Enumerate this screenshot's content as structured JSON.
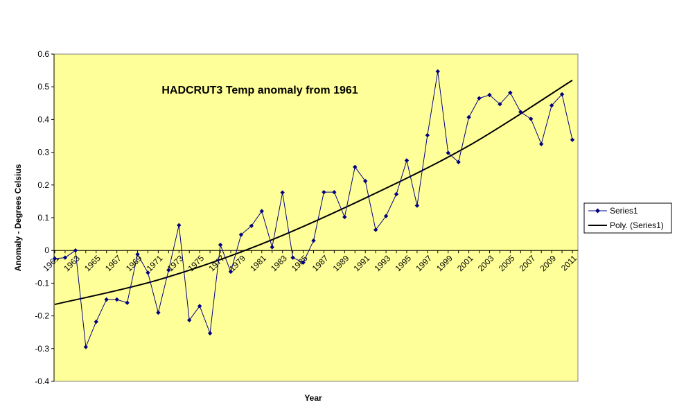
{
  "chart_data": {
    "type": "line",
    "title": "HADCRUT3 Temp anomaly from 1961",
    "xlabel": "Year",
    "ylabel": "Anomaly - Degrees Celsius",
    "ylim": [
      -0.4,
      0.6
    ],
    "ytick_step": 0.1,
    "xtick_labels": [
      "1961",
      "1963",
      "1965",
      "1967",
      "1969",
      "1971",
      "1973",
      "1975",
      "1977",
      "1979",
      "1981",
      "1983",
      "1985",
      "1987",
      "1989",
      "1991",
      "1993",
      "1995",
      "1997",
      "1999",
      "2001",
      "2003",
      "2005",
      "2007",
      "2009",
      "2011"
    ],
    "plot_background": "#ffff99",
    "grid": false,
    "legend_position": "right",
    "series": [
      {
        "name": "Series1",
        "color": "#000080",
        "marker": "diamond",
        "x": [
          1961,
          1962,
          1963,
          1964,
          1965,
          1966,
          1967,
          1968,
          1969,
          1970,
          1971,
          1972,
          1973,
          1974,
          1975,
          1976,
          1977,
          1978,
          1979,
          1980,
          1981,
          1982,
          1983,
          1984,
          1985,
          1986,
          1987,
          1988,
          1989,
          1990,
          1991,
          1992,
          1993,
          1994,
          1995,
          1996,
          1997,
          1998,
          1999,
          2000,
          2001,
          2002,
          2003,
          2004,
          2005,
          2006,
          2007,
          2008,
          2009,
          2010,
          2011
        ],
        "values": [
          -0.025,
          -0.022,
          0.0,
          -0.295,
          -0.218,
          -0.15,
          -0.15,
          -0.16,
          -0.012,
          -0.068,
          -0.19,
          -0.06,
          0.077,
          -0.213,
          -0.17,
          -0.253,
          0.017,
          -0.065,
          0.048,
          0.075,
          0.12,
          0.01,
          0.177,
          -0.022,
          -0.037,
          0.03,
          0.178,
          0.178,
          0.102,
          0.255,
          0.212,
          0.063,
          0.105,
          0.172,
          0.275,
          0.137,
          0.352,
          0.547,
          0.298,
          0.27,
          0.407,
          0.465,
          0.475,
          0.447,
          0.482,
          0.423,
          0.402,
          0.325,
          0.443,
          0.477,
          0.338
        ]
      },
      {
        "name": "Poly. (Series1)",
        "color": "#000000",
        "type": "trendline",
        "x": [
          1961,
          1971,
          1981,
          1991,
          2001,
          2011
        ],
        "values": [
          -0.165,
          -0.09,
          0.02,
          0.16,
          0.32,
          0.52
        ]
      }
    ]
  }
}
